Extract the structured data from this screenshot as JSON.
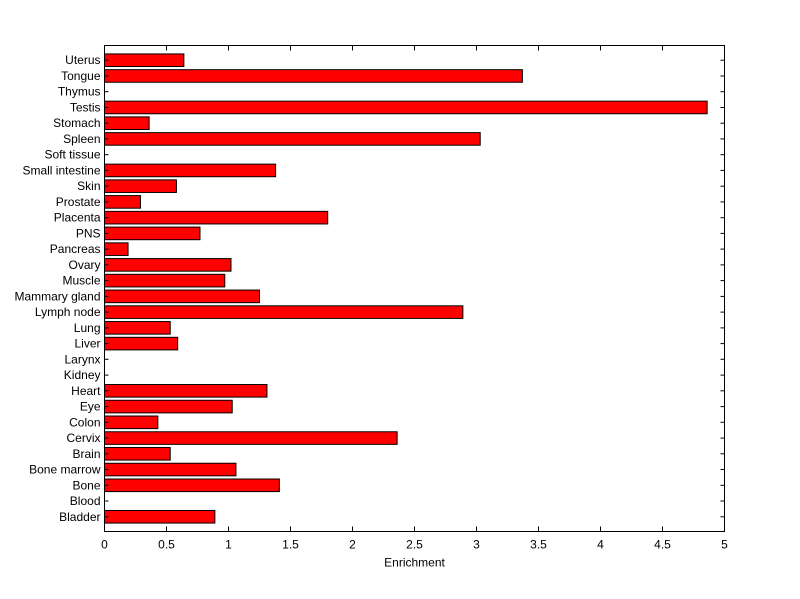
{
  "chart_data": {
    "type": "bar",
    "orientation": "horizontal",
    "title": "",
    "xlabel": "Enrichment",
    "ylabel": "",
    "xlim": [
      0,
      5
    ],
    "x_ticks": [
      "0",
      "0.5",
      "1",
      "1.5",
      "2",
      "2.5",
      "3",
      "3.5",
      "4",
      "4.5",
      "5"
    ],
    "grid": false,
    "bar_color": "#ff0000",
    "categories": [
      "Uterus",
      "Tongue",
      "Thymus",
      "Testis",
      "Stomach",
      "Spleen",
      "Soft tissue",
      "Small intestine",
      "Skin",
      "Prostate",
      "Placenta",
      "PNS",
      "Pancreas",
      "Ovary",
      "Muscle",
      "Mammary gland",
      "Lymph node",
      "Lung",
      "Liver",
      "Larynx",
      "Kidney",
      "Heart",
      "Eye",
      "Colon",
      "Cervix",
      "Brain",
      "Bone marrow",
      "Bone",
      "Blood",
      "Bladder"
    ],
    "values": [
      0.64,
      3.37,
      0,
      4.86,
      0.36,
      3.03,
      0,
      1.38,
      0.58,
      0.29,
      1.8,
      0.77,
      0.19,
      1.02,
      0.97,
      1.25,
      2.89,
      0.53,
      0.59,
      0,
      0,
      1.31,
      1.03,
      0.43,
      2.36,
      0.53,
      1.06,
      1.41,
      0,
      0.89
    ]
  }
}
